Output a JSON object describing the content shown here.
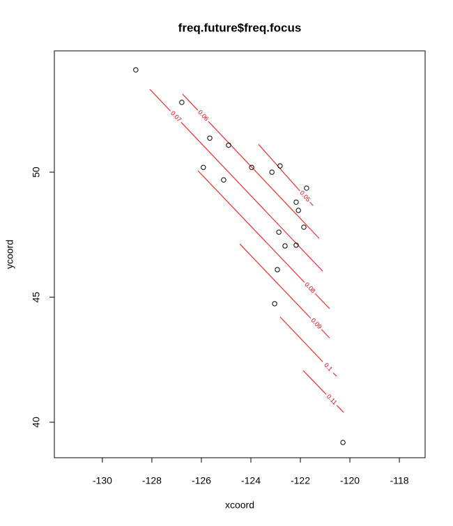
{
  "chart_data": {
    "type": "scatter",
    "title": "freq.future$freq.focus",
    "xlabel": "xcoord",
    "ylabel": "ycoord",
    "x": [
      -128.65,
      -126.79,
      -125.66,
      -124.9,
      -125.92,
      -125.1,
      -123.97,
      -123.15,
      -122.82,
      -121.75,
      -122.17,
      -122.08,
      -121.86,
      -122.87,
      -122.62,
      -122.17,
      -122.93,
      -123.04,
      -120.28
    ],
    "y": [
      54.09,
      52.79,
      51.36,
      51.08,
      50.19,
      49.69,
      50.19,
      50.0,
      50.25,
      49.36,
      48.8,
      48.47,
      47.8,
      47.6,
      47.05,
      47.08,
      46.1,
      44.74,
      39.19
    ],
    "color": "#000000",
    "xlim": [
      -131.94,
      -116.96
    ],
    "ylim": [
      38.58,
      54.85
    ],
    "xticks": [
      -130,
      -128,
      -126,
      -124,
      -122,
      -120,
      -118
    ],
    "yticks": [
      40,
      45,
      50
    ],
    "contour_color": "#ff0000",
    "contours": [
      {
        "level": 0.05,
        "x": [
          -123.69,
          -121.49
        ],
        "y": [
          51.11,
          48.66
        ]
      },
      {
        "level": 0.06,
        "x": [
          -126.76,
          -121.24
        ],
        "y": [
          53.12,
          47.35
        ]
      },
      {
        "level": 0.07,
        "x": [
          -128.08,
          -121.1
        ],
        "y": [
          53.31,
          46.04
        ]
      },
      {
        "level": 0.08,
        "x": [
          -126.14,
          -120.82
        ],
        "y": [
          50.06,
          44.54
        ]
      },
      {
        "level": 0.09,
        "x": [
          -124.45,
          -120.82
        ],
        "y": [
          47.13,
          43.37
        ]
      },
      {
        "level": 0.1,
        "x": [
          -122.82,
          -120.54
        ],
        "y": [
          44.21,
          41.84
        ]
      },
      {
        "level": 0.11,
        "x": [
          -121.89,
          -120.25
        ],
        "y": [
          42.07,
          40.39
        ]
      }
    ]
  }
}
